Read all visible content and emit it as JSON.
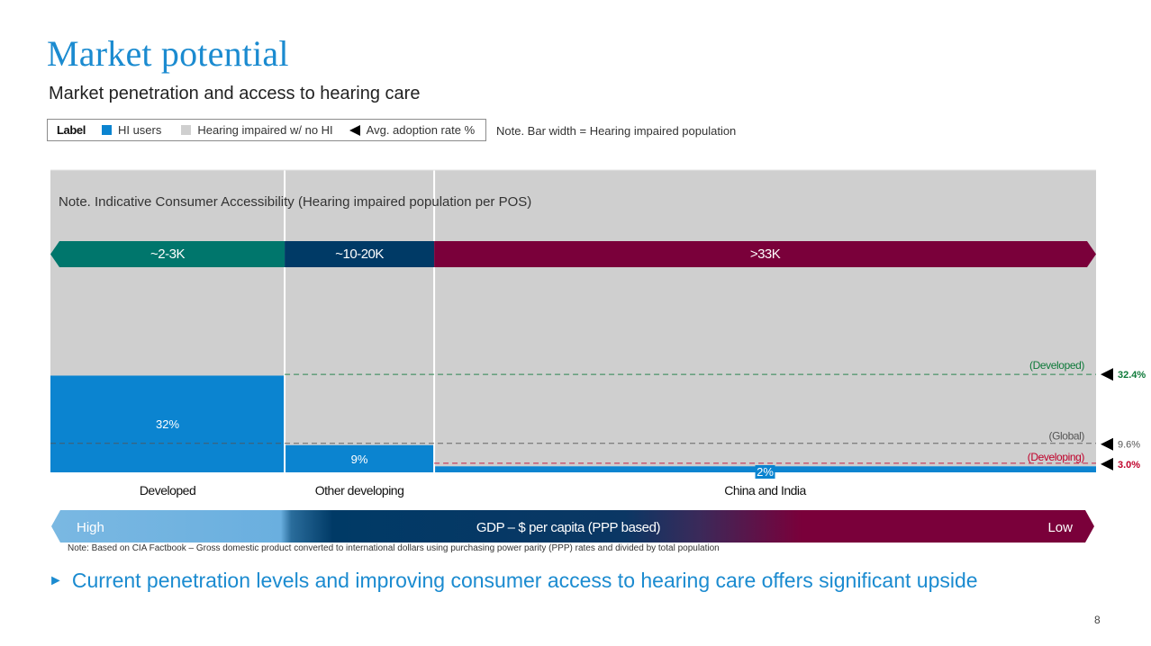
{
  "title": "Market potential",
  "subtitle": "Market penetration and access to hearing care",
  "legend": {
    "label": "Label",
    "items": [
      {
        "name": "HI users",
        "color": "#0b84d0",
        "icon": "square"
      },
      {
        "name": "Hearing impaired w/ no HI",
        "color": "#cfcfcf",
        "icon": "square"
      },
      {
        "name": "Avg. adoption rate %",
        "color": "#000000",
        "icon": "left-triangle-icon"
      }
    ]
  },
  "bar_width_note": "Note. Bar width = Hearing impaired population",
  "page_number": "8",
  "takeaway": "Current penetration levels and improving consumer access to hearing care offers significant upside",
  "gdp_note": "Note: Based on CIA Factbook – Gross domestic product converted to international dollars using purchasing power parity (PPP) rates and divided by total population",
  "chart_data": {
    "type": "bar",
    "subtype": "variable-width-stacked-100",
    "title": "Note. Indicative Consumer Accessibility (Hearing impaired population per POS)",
    "ylim": [
      0,
      100
    ],
    "categories": [
      "Developed",
      "Other developing",
      "China and India"
    ],
    "series": [
      {
        "name": "HI users",
        "color": "#0b84d0",
        "values": [
          32,
          9,
          2
        ]
      },
      {
        "name": "Hearing impaired w/ no HI",
        "color": "#cfcfcf",
        "values": [
          68,
          91,
          98
        ]
      }
    ],
    "data_labels": [
      "32%",
      "9%",
      "2%"
    ],
    "bar_width_share": [
      0.224,
      0.143,
      0.633
    ],
    "accessibility_labels": [
      {
        "text": "~2-3K",
        "color": "#00766c"
      },
      {
        "text": "~10-20K",
        "color": "#003a66"
      },
      {
        "text": ">33K",
        "color": "#7a003a"
      }
    ],
    "reference_lines": [
      {
        "name": "(Developed)",
        "value": 32.4,
        "label": "32.4%",
        "color": "#0f7a3a"
      },
      {
        "name": "(Global)",
        "value": 9.6,
        "label": "9.6%",
        "color": "#555555"
      },
      {
        "name": "(Developing)",
        "value": 3.0,
        "label": "3.0%",
        "color": "#c0002a"
      }
    ],
    "gdp_axis": {
      "label": "GDP – $ per capita (PPP based)",
      "left": "High",
      "right": "Low"
    }
  }
}
